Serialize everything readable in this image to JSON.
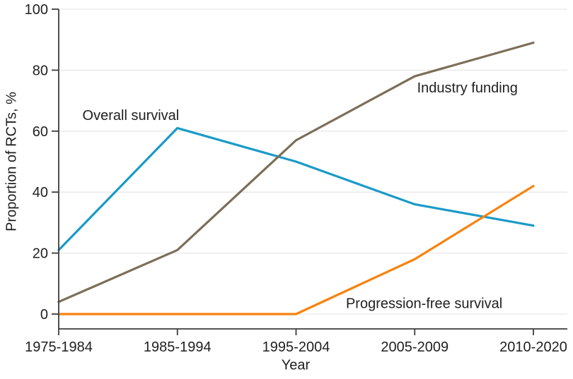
{
  "chart_data": {
    "type": "line",
    "title": "",
    "xlabel": "Year",
    "ylabel": "Proportion of RCTs, %",
    "categories": [
      "1975-1984",
      "1985-1994",
      "1995-2004",
      "2005-2009",
      "2010-2020"
    ],
    "ylim": [
      0,
      100
    ],
    "yticks": [
      0,
      20,
      40,
      60,
      80,
      100
    ],
    "grid": true,
    "legend_position": "inline-labels-on-plot",
    "series": [
      {
        "name": "Overall survival",
        "color": "#1a9ac8",
        "values": [
          21,
          61,
          50,
          36,
          29
        ],
        "label": {
          "x_index": 0.2,
          "y_value": 65.3,
          "anchor": "start"
        }
      },
      {
        "name": "Industry funding",
        "color": "#7c6e58",
        "values": [
          4,
          21,
          57,
          78,
          89
        ],
        "label": {
          "x_index": 3.02,
          "y_value": 74.3,
          "anchor": "start"
        }
      },
      {
        "name": "Progression-free survival",
        "color": "#f8820d",
        "values": [
          0,
          0,
          0,
          18,
          42
        ],
        "label": {
          "x_index": 2.42,
          "y_value": 3.6,
          "anchor": "start"
        }
      }
    ],
    "colors": {
      "axis": "#3c3c3c",
      "grid": "#e7e7e7",
      "text": "#1f1f1f",
      "background": "#ffffff"
    }
  }
}
